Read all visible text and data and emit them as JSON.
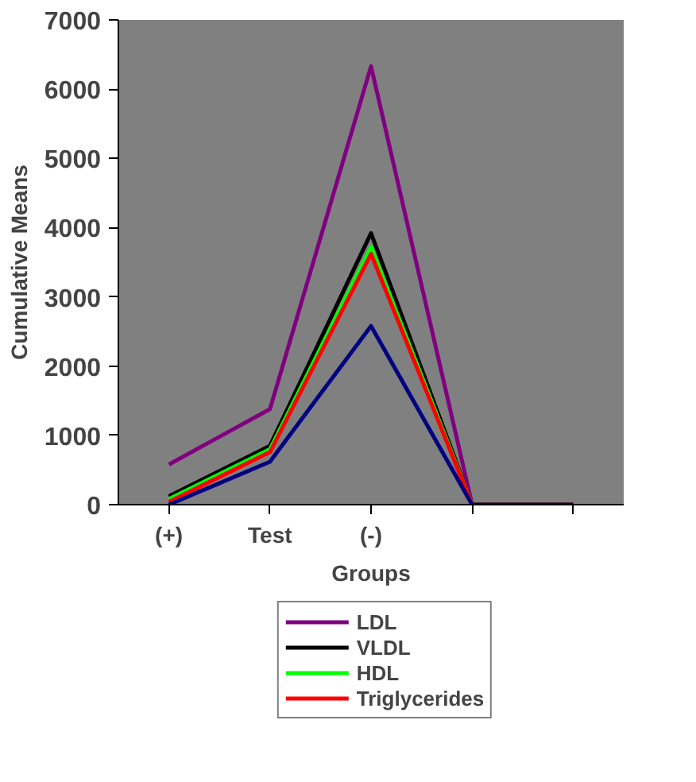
{
  "chart_data": {
    "type": "line",
    "xlabel": "Groups",
    "ylabel": "Cumulative Means",
    "categories": [
      "(+)",
      "Test",
      "(-)",
      null,
      null
    ],
    "ylim": [
      0,
      7000
    ],
    "yticks": [
      0,
      1000,
      2000,
      3000,
      4000,
      5000,
      6000,
      7000
    ],
    "grid": false,
    "legend": "bottom",
    "series": [
      {
        "name": "LDL",
        "color": "#800080",
        "values": [
          580,
          1380,
          6330,
          0,
          0
        ]
      },
      {
        "name": "VLDL",
        "color": "#000000",
        "values": [
          120,
          850,
          3920,
          0,
          0
        ]
      },
      {
        "name": "HDL",
        "color": "#00ff00",
        "values": [
          80,
          800,
          3720,
          0,
          0
        ]
      },
      {
        "name": "Triglycerides",
        "color": "#ff0000",
        "values": [
          40,
          760,
          3620,
          0,
          0
        ]
      },
      {
        "color": "#000080",
        "values": [
          0,
          620,
          2580,
          0,
          0
        ]
      }
    ]
  }
}
